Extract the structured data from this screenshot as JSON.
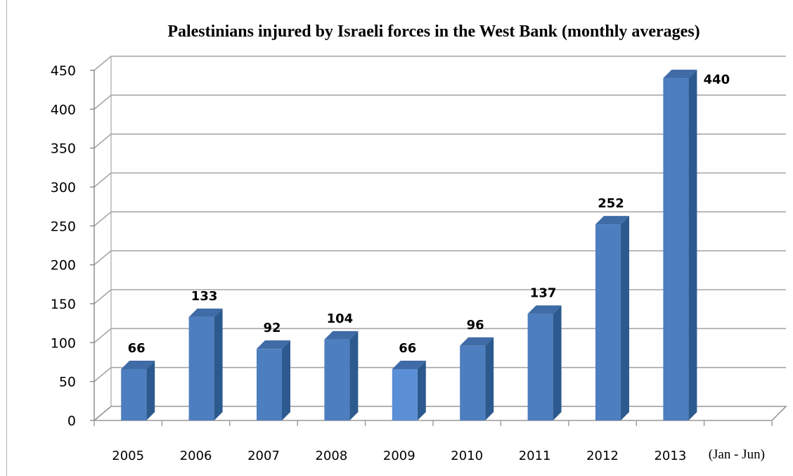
{
  "chart_data": {
    "type": "bar",
    "title": "Palestinians injured by Israeli forces in the West Bank (monthly averages)",
    "xlabel": "",
    "ylabel": "",
    "categories": [
      "2005",
      "2006",
      "2007",
      "2008",
      "2009",
      "2010",
      "2011",
      "2012",
      "2013"
    ],
    "x_annotation": "(Jan - Jun)",
    "values": [
      66,
      133,
      92,
      104,
      66,
      96,
      137,
      252,
      440
    ],
    "data_labels": [
      "66",
      "133",
      "92",
      "104",
      "66",
      "96",
      "137",
      "252",
      "440"
    ],
    "ylim": [
      0,
      450
    ],
    "yticks": [
      0,
      50,
      100,
      150,
      200,
      250,
      300,
      350,
      400,
      450
    ],
    "grid": true,
    "legend": "none",
    "three_d": true,
    "colors": {
      "bar_front": "#4d7ebf",
      "bar_front_highlight": "#5a8fd6",
      "bar_side": "#2d5a8e",
      "bar_top": "#3f6ba6",
      "grid": "#a6a6a6",
      "wall": "#ffffff",
      "text": "#000000"
    }
  }
}
